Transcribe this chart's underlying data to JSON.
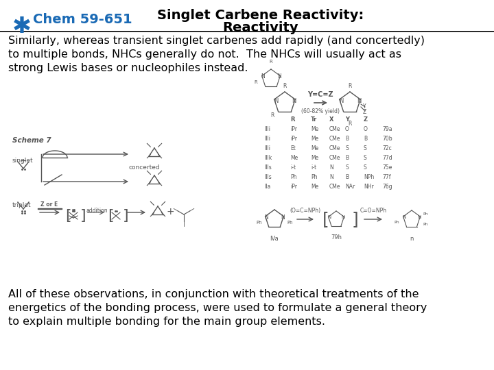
{
  "title_left": "Chem 59-651",
  "title_right_line1": "Singlet Carbene Reactivity:",
  "title_right_line2": "Reactivity",
  "body_text": "Similarly, whereas transient singlet carbenes add rapidly (and concertedly)\nto multiple bonds, NHCs generally do not.  The NHCs will usually act as\nstrong Lewis bases or nucleophiles instead.",
  "footer_text": "All of these observations, in conjunction with theoretical treatments of the\nenergetics of the bonding process, were used to formulate a general theory\nto explain multiple bonding for the main group elements.",
  "bg_color": "#ffffff",
  "title_color": "#000000",
  "header_left_color": "#1a6ab5",
  "body_color": "#000000",
  "footer_color": "#000000",
  "header_line_color": "#000000",
  "icon_color": "#1a6ab5",
  "diagram_color": "#555555",
  "title_fontsize": 14,
  "body_fontsize": 11.5,
  "footer_fontsize": 11.5,
  "header_label_fontsize": 14
}
